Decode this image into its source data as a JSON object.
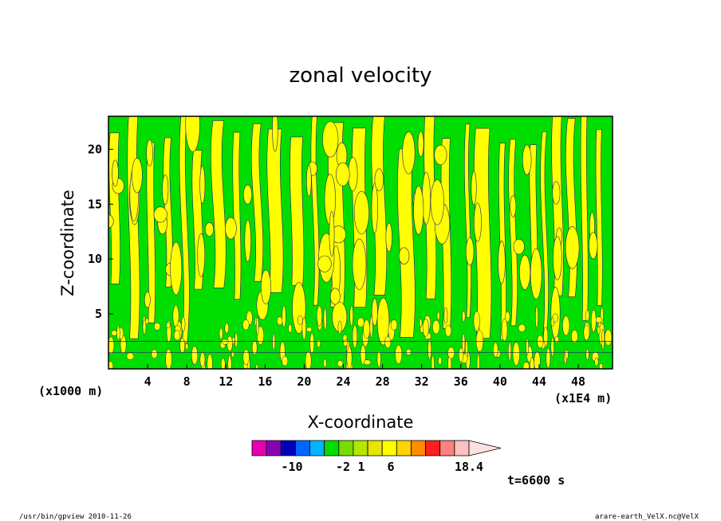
{
  "chart_data": {
    "type": "heatmap",
    "title": "zonal velocity",
    "xlabel": "X-coordinate",
    "ylabel": "Z-coordinate",
    "x_unit": "(x1000 m)",
    "x_scale": "(x1E4 m)",
    "xlim": [
      0,
      51.5
    ],
    "ylim": [
      0,
      23
    ],
    "x_ticks": [
      "4",
      "8",
      "12",
      "16",
      "20",
      "24",
      "28",
      "32",
      "36",
      "40",
      "44",
      "48"
    ],
    "y_ticks": [
      "5",
      "10",
      "15",
      "20"
    ],
    "field_colors": {
      "negative": "#00dd00",
      "positive": "#ffff00"
    },
    "colorbar": {
      "colors": [
        "#e600b4",
        "#8c00b4",
        "#0000b4",
        "#0066ff",
        "#00b4ff",
        "#00dd00",
        "#78dc00",
        "#b4e600",
        "#e6e600",
        "#ffff00",
        "#ffd200",
        "#ff8c00",
        "#ff1e1e",
        "#ff8080",
        "#ffc0c0",
        "#ffe0e0"
      ],
      "labels": [
        "-10",
        "-2",
        "1",
        "6",
        "18.4"
      ]
    },
    "time_label": "t=6600 s"
  },
  "footer": {
    "left": "/usr/bin/gpview   2010-11-26",
    "right": "arare-earth_VelX.nc@VelX"
  }
}
